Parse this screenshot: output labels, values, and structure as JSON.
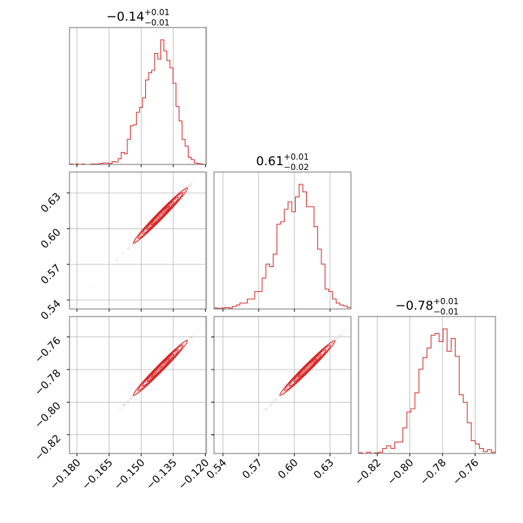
{
  "chart_data": {
    "type": "corner",
    "line_color": "#d62728",
    "grid": true,
    "parameters": [
      {
        "title": {
          "value": "−0.14",
          "plus": "+0.01",
          "minus": "−0.01"
        },
        "range": [
          -0.1835,
          -0.1195
        ],
        "ticks": [
          -0.18,
          -0.165,
          -0.15,
          -0.135,
          -0.12
        ],
        "tick_labels": [
          "−0.180",
          "−0.165",
          "−0.150",
          "−0.135",
          "−0.120"
        ],
        "hist": [
          1,
          0,
          1,
          0,
          1,
          0,
          0,
          1,
          1,
          1,
          2,
          3,
          3,
          2,
          6,
          5,
          12,
          25,
          22,
          52,
          80,
          82,
          108,
          118,
          138,
          175,
          190,
          195,
          230,
          218,
          258,
          235,
          215,
          200,
          168,
          120,
          90,
          52,
          38,
          15,
          10,
          3,
          2,
          1,
          0
        ]
      },
      {
        "title": {
          "value": "0.61",
          "plus": "+0.01",
          "minus": "−0.02"
        },
        "range": [
          0.5325,
          0.6475
        ],
        "ticks": [
          0.54,
          0.57,
          0.6,
          0.63
        ],
        "tick_labels": [
          "0.54",
          "0.57",
          "0.60",
          "0.63"
        ],
        "hist": [
          2,
          1,
          2,
          3,
          2,
          5,
          8,
          12,
          12,
          20,
          20,
          35,
          35,
          62,
          90,
          85,
          110,
          170,
          175,
          200,
          215,
          195,
          225,
          250,
          235,
          205,
          205,
          165,
          120,
          90,
          40,
          35,
          20,
          12,
          8,
          6,
          3
        ]
      },
      {
        "title": {
          "value": "−0.78",
          "plus": "+0.01",
          "minus": "−0.01"
        },
        "range": [
          -0.8315,
          -0.7475
        ],
        "ticks": [
          -0.82,
          -0.8,
          -0.78,
          -0.76
        ],
        "tick_labels": [
          "−0.82",
          "−0.80",
          "−0.78",
          "−0.76"
        ],
        "hist": [
          1,
          0,
          2,
          0,
          1,
          2,
          8,
          12,
          8,
          18,
          18,
          40,
          65,
          70,
          95,
          132,
          150,
          165,
          185,
          188,
          175,
          195,
          160,
          180,
          152,
          92,
          80,
          48,
          20,
          15,
          8,
          3,
          6,
          2
        ]
      }
    ]
  }
}
